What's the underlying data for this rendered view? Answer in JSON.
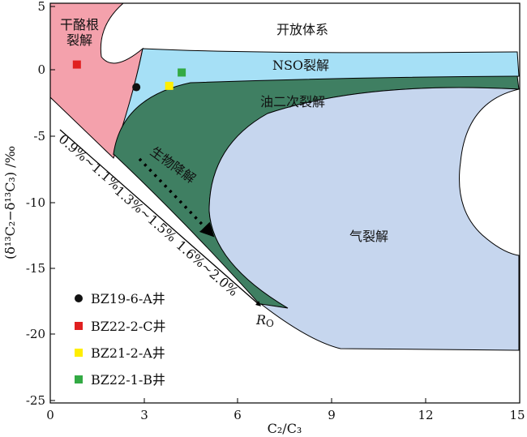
{
  "chart_data": {
    "type": "scatter",
    "xlabel": "C₂/C₃",
    "ylabel": "(δ¹³C₂−δ¹³C₃) /‰",
    "xlim": [
      0,
      15
    ],
    "ylim": [
      -25,
      5
    ],
    "x_ticks": [
      "0",
      "3",
      "6",
      "9",
      "12",
      "15"
    ],
    "y_ticks": [
      "5",
      "0",
      "-5",
      "-10",
      "-15",
      "-20",
      "-25"
    ],
    "grid": false,
    "legend_placement": "bottom-left",
    "series": [
      {
        "name": "BZ19-6-A井",
        "color": "#111111",
        "marker": "circle",
        "x": [
          2.75
        ],
        "y": [
          -1.3
        ]
      },
      {
        "name": "BZ22-2-C井",
        "color": "#e02020",
        "marker": "square",
        "x": [
          0.85
        ],
        "y": [
          0.4
        ]
      },
      {
        "name": "BZ21-2-A井",
        "color": "#ffee00",
        "marker": "square",
        "x": [
          3.8
        ],
        "y": [
          -1.2
        ]
      },
      {
        "name": "BZ22-1-B井",
        "color": "#33aa44",
        "marker": "square",
        "x": [
          4.2
        ],
        "y": [
          -0.2
        ]
      }
    ],
    "regions": [
      {
        "label": "干酪根",
        "label2": "裂解",
        "color": "#f4a1ac"
      },
      {
        "label": "开放体系"
      },
      {
        "label": "NSO裂解",
        "color": "#a6e0f6"
      },
      {
        "label": "油二次裂解",
        "color": "#3f7f62"
      },
      {
        "label": "气裂解",
        "color": "#c6d6ee"
      },
      {
        "label": "生物降解"
      }
    ],
    "ro_annotation": {
      "label": "R",
      "sub": "O",
      "ranges": [
        "0.9%~1.1%",
        "1.3%~1.5%",
        "1.6%~2.0%"
      ]
    }
  }
}
